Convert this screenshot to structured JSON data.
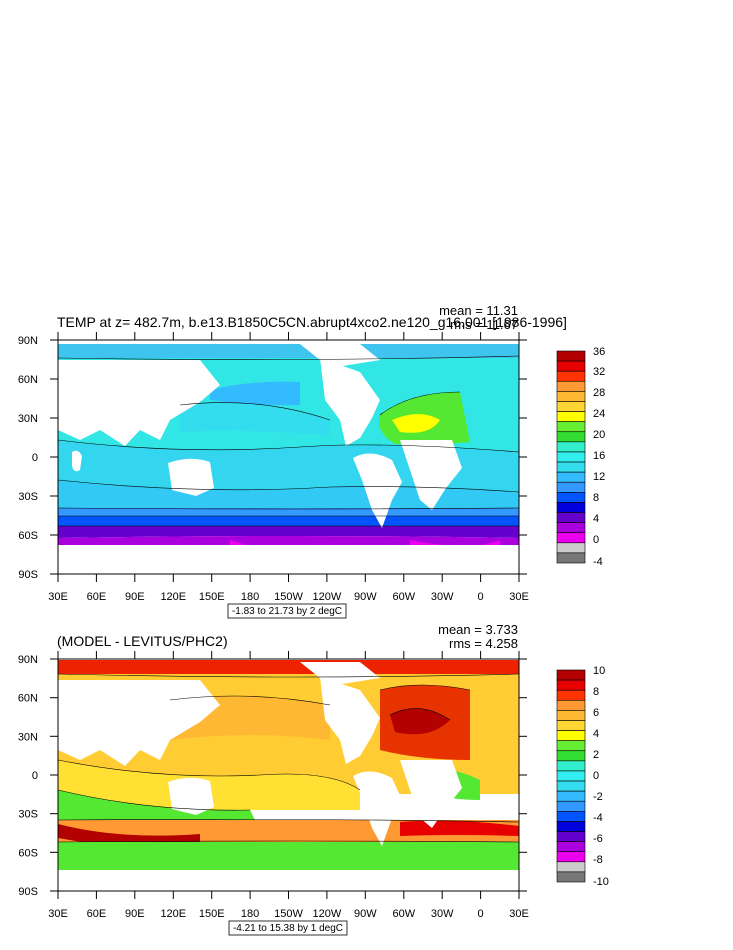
{
  "panels": [
    {
      "title": "TEMP at z= 482.7m, b.e13.B1850C5CN.abrupt4xco2.ne120_g16.001 [1986-1996]",
      "mean": "mean = 11.31",
      "rms": "rms = 11.67",
      "contour_info": "-1.83 to 21.73 by 2 degC",
      "colorbar_labels": [
        "36",
        "32",
        "28",
        "24",
        "20",
        "16",
        "12",
        "8",
        "4",
        "0",
        "-4"
      ],
      "colorbar_colors": [
        "#b30000",
        "#e60000",
        "#ff3300",
        "#ff9933",
        "#ffb833",
        "#ffd633",
        "#ffff00",
        "#66ee33",
        "#33dd33",
        "#33eecc",
        "#33eeee",
        "#33ddee",
        "#33bbff",
        "#3399ff",
        "#0055ff",
        "#0000dd",
        "#6600cc",
        "#aa00dd",
        "#ee00ee",
        "#cccccc",
        "#777777"
      ]
    },
    {
      "title": "(MODEL - LEVITUS/PHC2)",
      "mean": "mean = 3.733",
      "rms": "rms = 4.258",
      "contour_info": "-4.21 to 15.38 by 1 degC",
      "colorbar_labels": [
        "10",
        "8",
        "6",
        "4",
        "2",
        "0",
        "-2",
        "-4",
        "-6",
        "-8",
        "-10"
      ],
      "colorbar_colors": [
        "#b30000",
        "#e60000",
        "#ff3300",
        "#ff9933",
        "#ffb833",
        "#ffd633",
        "#ffff00",
        "#66ee33",
        "#33dd33",
        "#33eecc",
        "#33eeee",
        "#33ddee",
        "#33bbff",
        "#3399ff",
        "#0055ff",
        "#0000dd",
        "#6600cc",
        "#aa00dd",
        "#ee00ee",
        "#cccccc",
        "#777777"
      ]
    }
  ],
  "lat_labels": [
    "90N",
    "60N",
    "30N",
    "0",
    "30S",
    "60S",
    "90S"
  ],
  "lon_labels": [
    "30E",
    "60E",
    "90E",
    "120E",
    "150E",
    "180",
    "150W",
    "120W",
    "90W",
    "60W",
    "30W",
    "0",
    "30E"
  ]
}
